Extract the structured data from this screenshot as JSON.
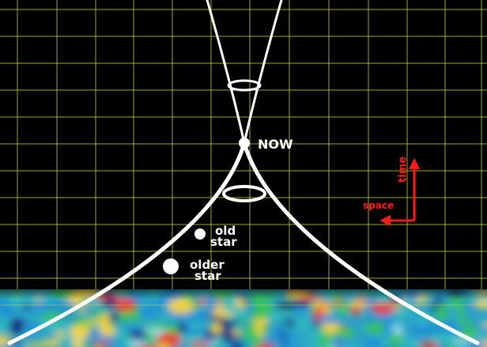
{
  "labels": {
    "now": "NOW",
    "old_star_line1": "old",
    "old_star_line2": "star",
    "older_star_line1": "older",
    "older_star_line2": "star",
    "time_axis": "time",
    "space_axis": "space"
  },
  "colors": {
    "background": "#000000",
    "grid": "#d8d84a",
    "light_cone": "#ffffff",
    "axis_arrows": "#ff1a1a",
    "cmb_palette": [
      "#1f8fd8",
      "#2fb8c0",
      "#37c25a",
      "#f0d23a",
      "#e8382a",
      "#18207a",
      "#9ee0f0"
    ]
  },
  "icons": {
    "time_arrow": "arrow-up-icon",
    "space_arrow": "arrow-left-icon"
  }
}
